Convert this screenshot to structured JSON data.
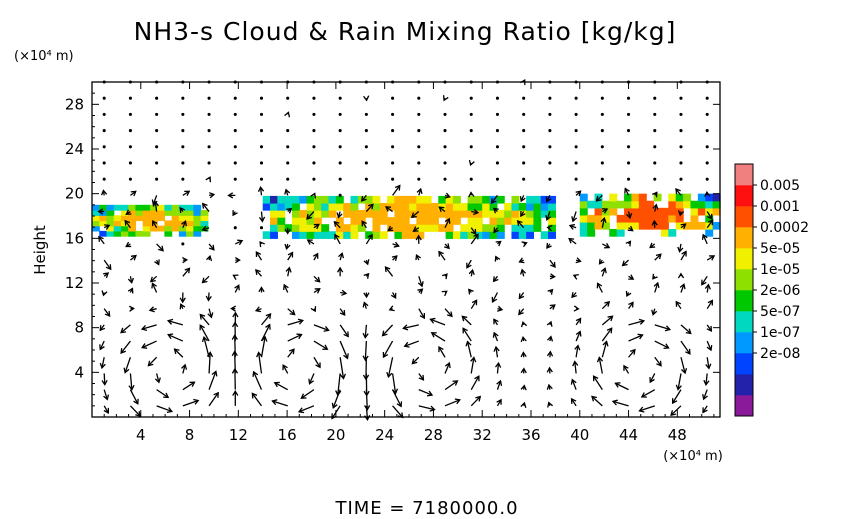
{
  "chart_data": {
    "type": "heatmap",
    "title": "NH3-s Cloud & Rain Mixing Ratio [kg/kg]",
    "ylabel": "Height",
    "xunit": "(×10⁴ m)",
    "yunit": "(×10⁴ m)",
    "xlim": [
      0,
      51.5
    ],
    "ylim": [
      0,
      30
    ],
    "xticks": [
      "4",
      "8",
      "12",
      "16",
      "20",
      "24",
      "28",
      "32",
      "36",
      "40",
      "44",
      "48"
    ],
    "yticks": [
      "4",
      "8",
      "12",
      "16",
      "20",
      "24",
      "28"
    ],
    "colorbar": {
      "labels": [
        "0.005",
        "0.001",
        "0.0002",
        "5e-05",
        "1e-05",
        "2e-06",
        "5e-07",
        "1e-07",
        "2e-08"
      ],
      "colors": [
        "#8b1a9a",
        "#2222aa",
        "#0044ff",
        "#0099ff",
        "#00d8c0",
        "#00c800",
        "#8ee000",
        "#f0f000",
        "#ffb000",
        "#ff5000",
        "#ff1010",
        "#f08080"
      ]
    },
    "cloud_layer": {
      "x_range": [
        0,
        51.5
      ],
      "y_range": [
        16,
        20
      ],
      "regions": [
        {
          "x": [
            0,
            9.5
          ],
          "y": [
            16.2,
            19.0
          ],
          "max_level": "0.0002"
        },
        {
          "x": [
            14,
            38
          ],
          "y": [
            16.0,
            19.8
          ],
          "max_level": "0.0002"
        },
        {
          "x": [
            40,
            51.5
          ],
          "y": [
            16.2,
            20.0
          ],
          "max_level": "0.001"
        }
      ]
    },
    "wind_vectors": "quiver field overlay",
    "footer": "TIME  =  7180000.0"
  }
}
